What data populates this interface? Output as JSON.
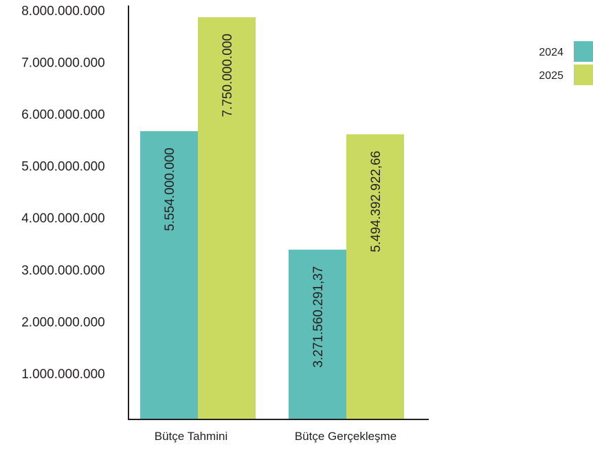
{
  "chart_data": {
    "type": "bar",
    "categories": [
      "Bütçe Tahmini",
      "Bütçe Gerçekleşme"
    ],
    "series": [
      {
        "name": "2024",
        "values": [
          5554000000,
          3271560291.37
        ],
        "labels": [
          "5.554.000.000",
          "3.271.560.291,37"
        ],
        "color": "#5fbfb8"
      },
      {
        "name": "2025",
        "values": [
          7750000000,
          5494392922.66
        ],
        "labels": [
          "7.750.000.000",
          "5.494.392.922,66"
        ],
        "color": "#cad95f"
      }
    ],
    "ylim": [
      0,
      8000000000
    ],
    "yticks": [
      {
        "value": 1000000000,
        "label": "1.000.000.000"
      },
      {
        "value": 2000000000,
        "label": "2.000.000.000"
      },
      {
        "value": 3000000000,
        "label": "3.000.000.000"
      },
      {
        "value": 4000000000,
        "label": "4.000.000.000"
      },
      {
        "value": 5000000000,
        "label": "5.000.000.000"
      },
      {
        "value": 6000000000,
        "label": "6.000.000.000"
      },
      {
        "value": 7000000000,
        "label": "7.000.000.000"
      },
      {
        "value": 8000000000,
        "label": "8.000.000.000"
      }
    ],
    "grid": false,
    "legend": "top-right",
    "title": "",
    "xlabel": "",
    "ylabel": ""
  }
}
